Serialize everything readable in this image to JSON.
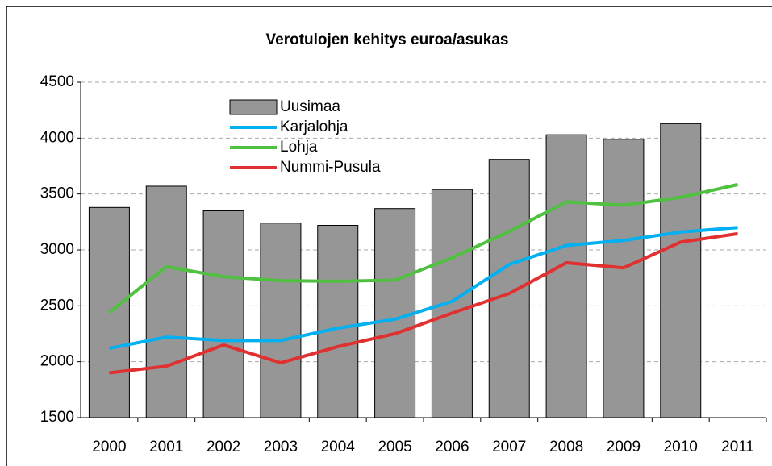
{
  "chart_data": {
    "type": "bar",
    "title": "Verotulojen kehitys euroa/asukas",
    "categories": [
      "2000",
      "2001",
      "2002",
      "2003",
      "2004",
      "2005",
      "2006",
      "2007",
      "2008",
      "2009",
      "2010",
      "2011"
    ],
    "series": [
      {
        "name": "Uusimaa",
        "type": "bar",
        "color": "#969696",
        "values": [
          3380,
          3570,
          3350,
          3240,
          3220,
          3370,
          3540,
          3810,
          4030,
          3990,
          4130,
          null
        ]
      },
      {
        "name": "Karjalohja",
        "type": "line",
        "color": "#00b0f0",
        "values": [
          2120,
          2220,
          2190,
          2190,
          2300,
          2380,
          2540,
          2870,
          3040,
          3085,
          3160,
          3200
        ]
      },
      {
        "name": "Lohja",
        "type": "line",
        "color": "#50c040",
        "values": [
          2440,
          2850,
          2760,
          2725,
          2720,
          2730,
          2930,
          3165,
          3430,
          3400,
          3470,
          3585
        ]
      },
      {
        "name": "Nummi-Pusula",
        "type": "line",
        "color": "#e03030",
        "values": [
          1900,
          1960,
          2150,
          1990,
          2135,
          2250,
          2435,
          2610,
          2885,
          2840,
          3070,
          3145
        ]
      }
    ],
    "ylim": [
      1500,
      4500
    ],
    "yticks": [
      1500,
      2000,
      2500,
      3000,
      3500,
      4000,
      4500
    ],
    "grid": true,
    "legend": "top-left"
  }
}
